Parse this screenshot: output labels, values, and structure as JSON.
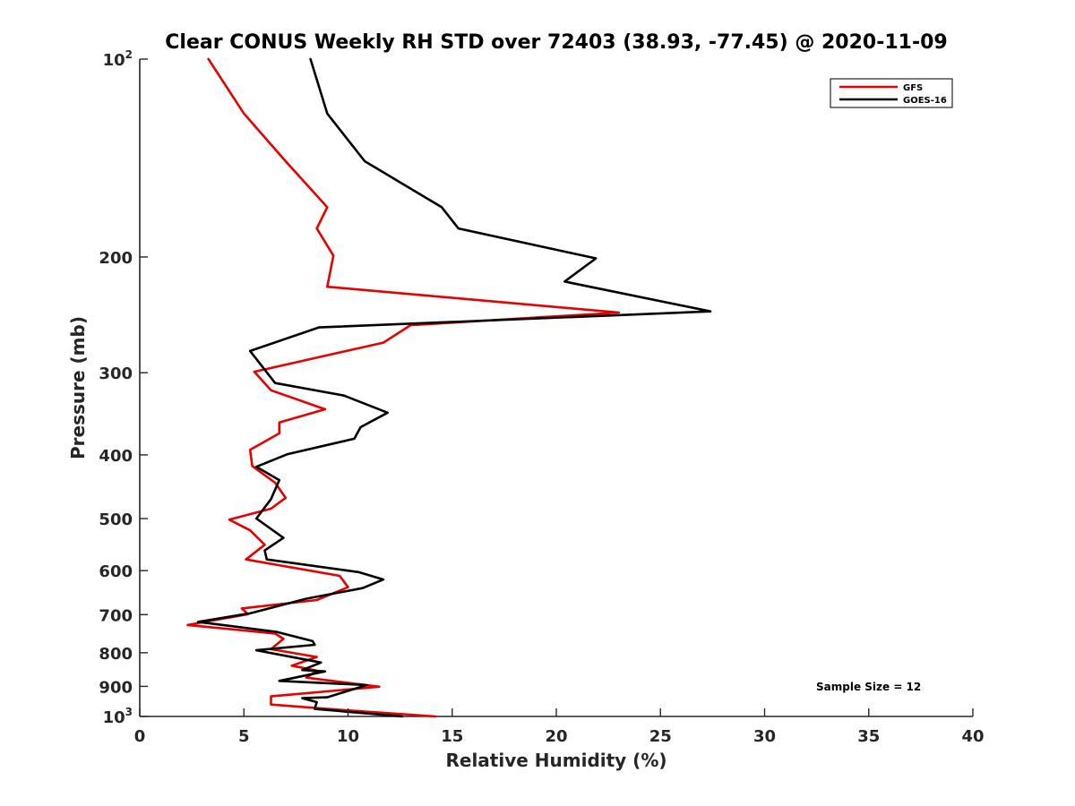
{
  "chart_data": {
    "type": "line",
    "title": "Clear CONUS Weekly RH STD over 72403 (38.93, -77.45) @ 2020-11-09",
    "xlabel": "Relative Humidity (%)",
    "ylabel": "Pressure (mb)",
    "xlim": [
      0,
      40
    ],
    "ylim": [
      100,
      1000
    ],
    "y_scale": "log",
    "y_reversed": true,
    "xticks": [
      0,
      5,
      10,
      15,
      20,
      25,
      30,
      35,
      40
    ],
    "yticks": [
      {
        "value": 100,
        "base": "10",
        "exp": "2"
      },
      {
        "value": 200,
        "label": "200"
      },
      {
        "value": 300,
        "label": "300"
      },
      {
        "value": 400,
        "label": "400"
      },
      {
        "value": 500,
        "label": "500"
      },
      {
        "value": 600,
        "label": "600"
      },
      {
        "value": 700,
        "label": "700"
      },
      {
        "value": 800,
        "label": "800"
      },
      {
        "value": 900,
        "label": "900"
      },
      {
        "value": 1000,
        "base": "10",
        "exp": "3"
      }
    ],
    "grid": false,
    "legend_position": "top-right",
    "annotation": "Sample Size = 12",
    "series": [
      {
        "name": "GFS",
        "color": "#e60000",
        "points": [
          [
            3.3,
            100
          ],
          [
            5.0,
            121
          ],
          [
            7.0,
            143
          ],
          [
            9.0,
            168
          ],
          [
            8.5,
            181
          ],
          [
            9.3,
            199
          ],
          [
            9.0,
            222
          ],
          [
            23.0,
            243
          ],
          [
            13.0,
            254
          ],
          [
            11.7,
            270
          ],
          [
            5.5,
            299
          ],
          [
            6.3,
            319
          ],
          [
            8.9,
            341
          ],
          [
            6.7,
            357
          ],
          [
            6.7,
            371
          ],
          [
            5.3,
            393
          ],
          [
            5.4,
            416
          ],
          [
            6.5,
            441
          ],
          [
            7.0,
            465
          ],
          [
            6.3,
            483
          ],
          [
            4.3,
            502
          ],
          [
            5.3,
            521
          ],
          [
            6.0,
            548
          ],
          [
            5.1,
            577
          ],
          [
            9.6,
            611
          ],
          [
            10.0,
            636
          ],
          [
            8.5,
            665
          ],
          [
            4.9,
            685
          ],
          [
            5.2,
            699
          ],
          [
            2.3,
            726
          ],
          [
            6.5,
            748
          ],
          [
            6.9,
            762
          ],
          [
            6.3,
            790
          ],
          [
            8.5,
            812
          ],
          [
            7.3,
            837
          ],
          [
            8.5,
            852
          ],
          [
            8.0,
            873
          ],
          [
            11.5,
            901
          ],
          [
            6.3,
            932
          ],
          [
            6.3,
            959
          ],
          [
            9.0,
            974
          ],
          [
            14.2,
            1000
          ]
        ]
      },
      {
        "name": "GOES-16",
        "color": "#000000",
        "points": [
          [
            8.2,
            100
          ],
          [
            9.0,
            121
          ],
          [
            10.8,
            143
          ],
          [
            14.5,
            168
          ],
          [
            15.3,
            181
          ],
          [
            21.9,
            201
          ],
          [
            20.4,
            218
          ],
          [
            27.4,
            242
          ],
          [
            8.6,
            256
          ],
          [
            5.3,
            278
          ],
          [
            6.5,
            311
          ],
          [
            9.8,
            325
          ],
          [
            11.9,
            345
          ],
          [
            10.6,
            363
          ],
          [
            10.3,
            378
          ],
          [
            7.1,
            399
          ],
          [
            5.6,
            417
          ],
          [
            6.7,
            437
          ],
          [
            6.3,
            467
          ],
          [
            5.6,
            500
          ],
          [
            6.9,
            535
          ],
          [
            6.0,
            559
          ],
          [
            6.1,
            577
          ],
          [
            10.5,
            603
          ],
          [
            11.7,
            619
          ],
          [
            10.7,
            638
          ],
          [
            8.0,
            662
          ],
          [
            5.3,
            697
          ],
          [
            4.9,
            700
          ],
          [
            2.8,
            718
          ],
          [
            6.6,
            744
          ],
          [
            8.3,
            768
          ],
          [
            8.4,
            778
          ],
          [
            5.6,
            793
          ],
          [
            8.7,
            828
          ],
          [
            7.8,
            850
          ],
          [
            8.9,
            854
          ],
          [
            6.7,
            883
          ],
          [
            10.9,
            896
          ],
          [
            9.0,
            935
          ],
          [
            7.8,
            938
          ],
          [
            8.5,
            951
          ],
          [
            8.4,
            974
          ],
          [
            12.6,
            1000
          ]
        ]
      }
    ]
  }
}
